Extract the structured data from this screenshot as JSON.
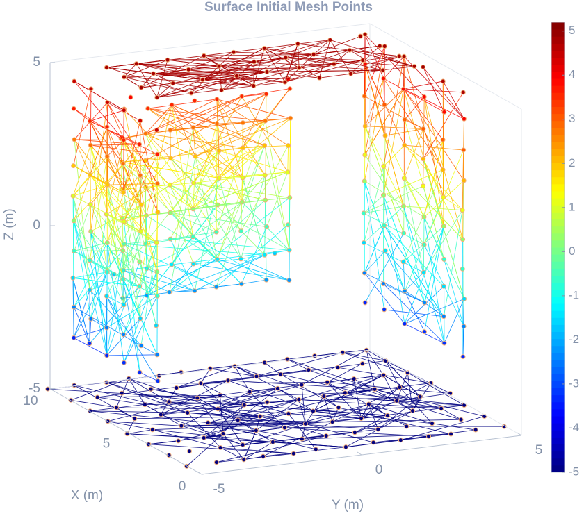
{
  "chart_data": {
    "type": "mesh3d",
    "title": "Surface Initial Mesh Points",
    "xlabel": "X (m)",
    "ylabel": "Y (m)",
    "zlabel": "Z (m)",
    "xlim": [
      0,
      10
    ],
    "ylim": [
      -5,
      5
    ],
    "zlim": [
      -5,
      5
    ],
    "xticks": [
      0,
      5,
      10
    ],
    "yticks": [
      -5,
      0,
      5
    ],
    "zticks": [
      -5,
      0,
      5
    ],
    "colorbar": {
      "colormap": "jet",
      "lim": [
        -5,
        5.2
      ],
      "ticks": [
        -5,
        -4,
        -3,
        -2,
        -1,
        0,
        1,
        2,
        3,
        4,
        5
      ]
    }
  }
}
